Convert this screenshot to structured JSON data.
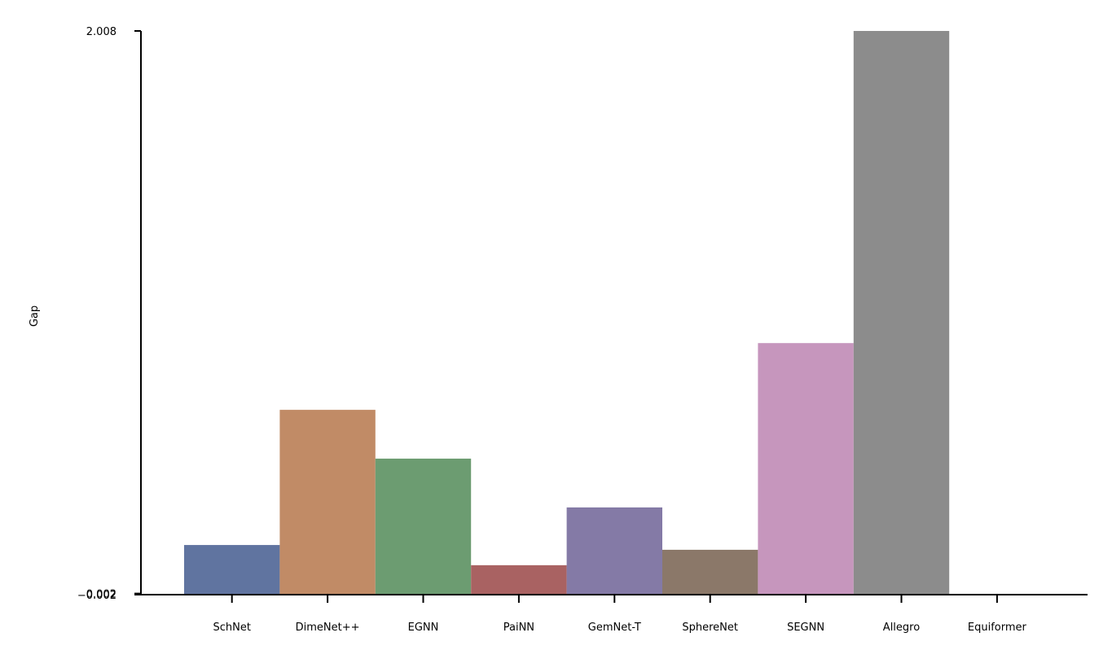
{
  "chart_data": {
    "type": "bar",
    "y_label": "Gap",
    "categories": [
      "SchNet",
      "DimeNet++",
      "EGNN",
      "PaiNN",
      "GemNet-T",
      "SphereNet",
      "SEGNN",
      "Allegro",
      "Equiformer"
    ],
    "values": [
      0.175,
      0.657,
      0.483,
      0.103,
      0.309,
      0.158,
      0.895,
      2.008,
      null
    ],
    "colors": [
      "#6074a0",
      "#c18b66",
      "#6c9c71",
      "#a96262",
      "#847aa6",
      "#8b7869",
      "#c696bd",
      "#8c8c8c",
      "#cdbb74"
    ],
    "ylim": [
      -0.002,
      2.008
    ],
    "yticks": [
      {
        "value": -0.002,
        "label": "−0.002"
      },
      0.002,
      2.008
    ],
    "grid": false
  }
}
